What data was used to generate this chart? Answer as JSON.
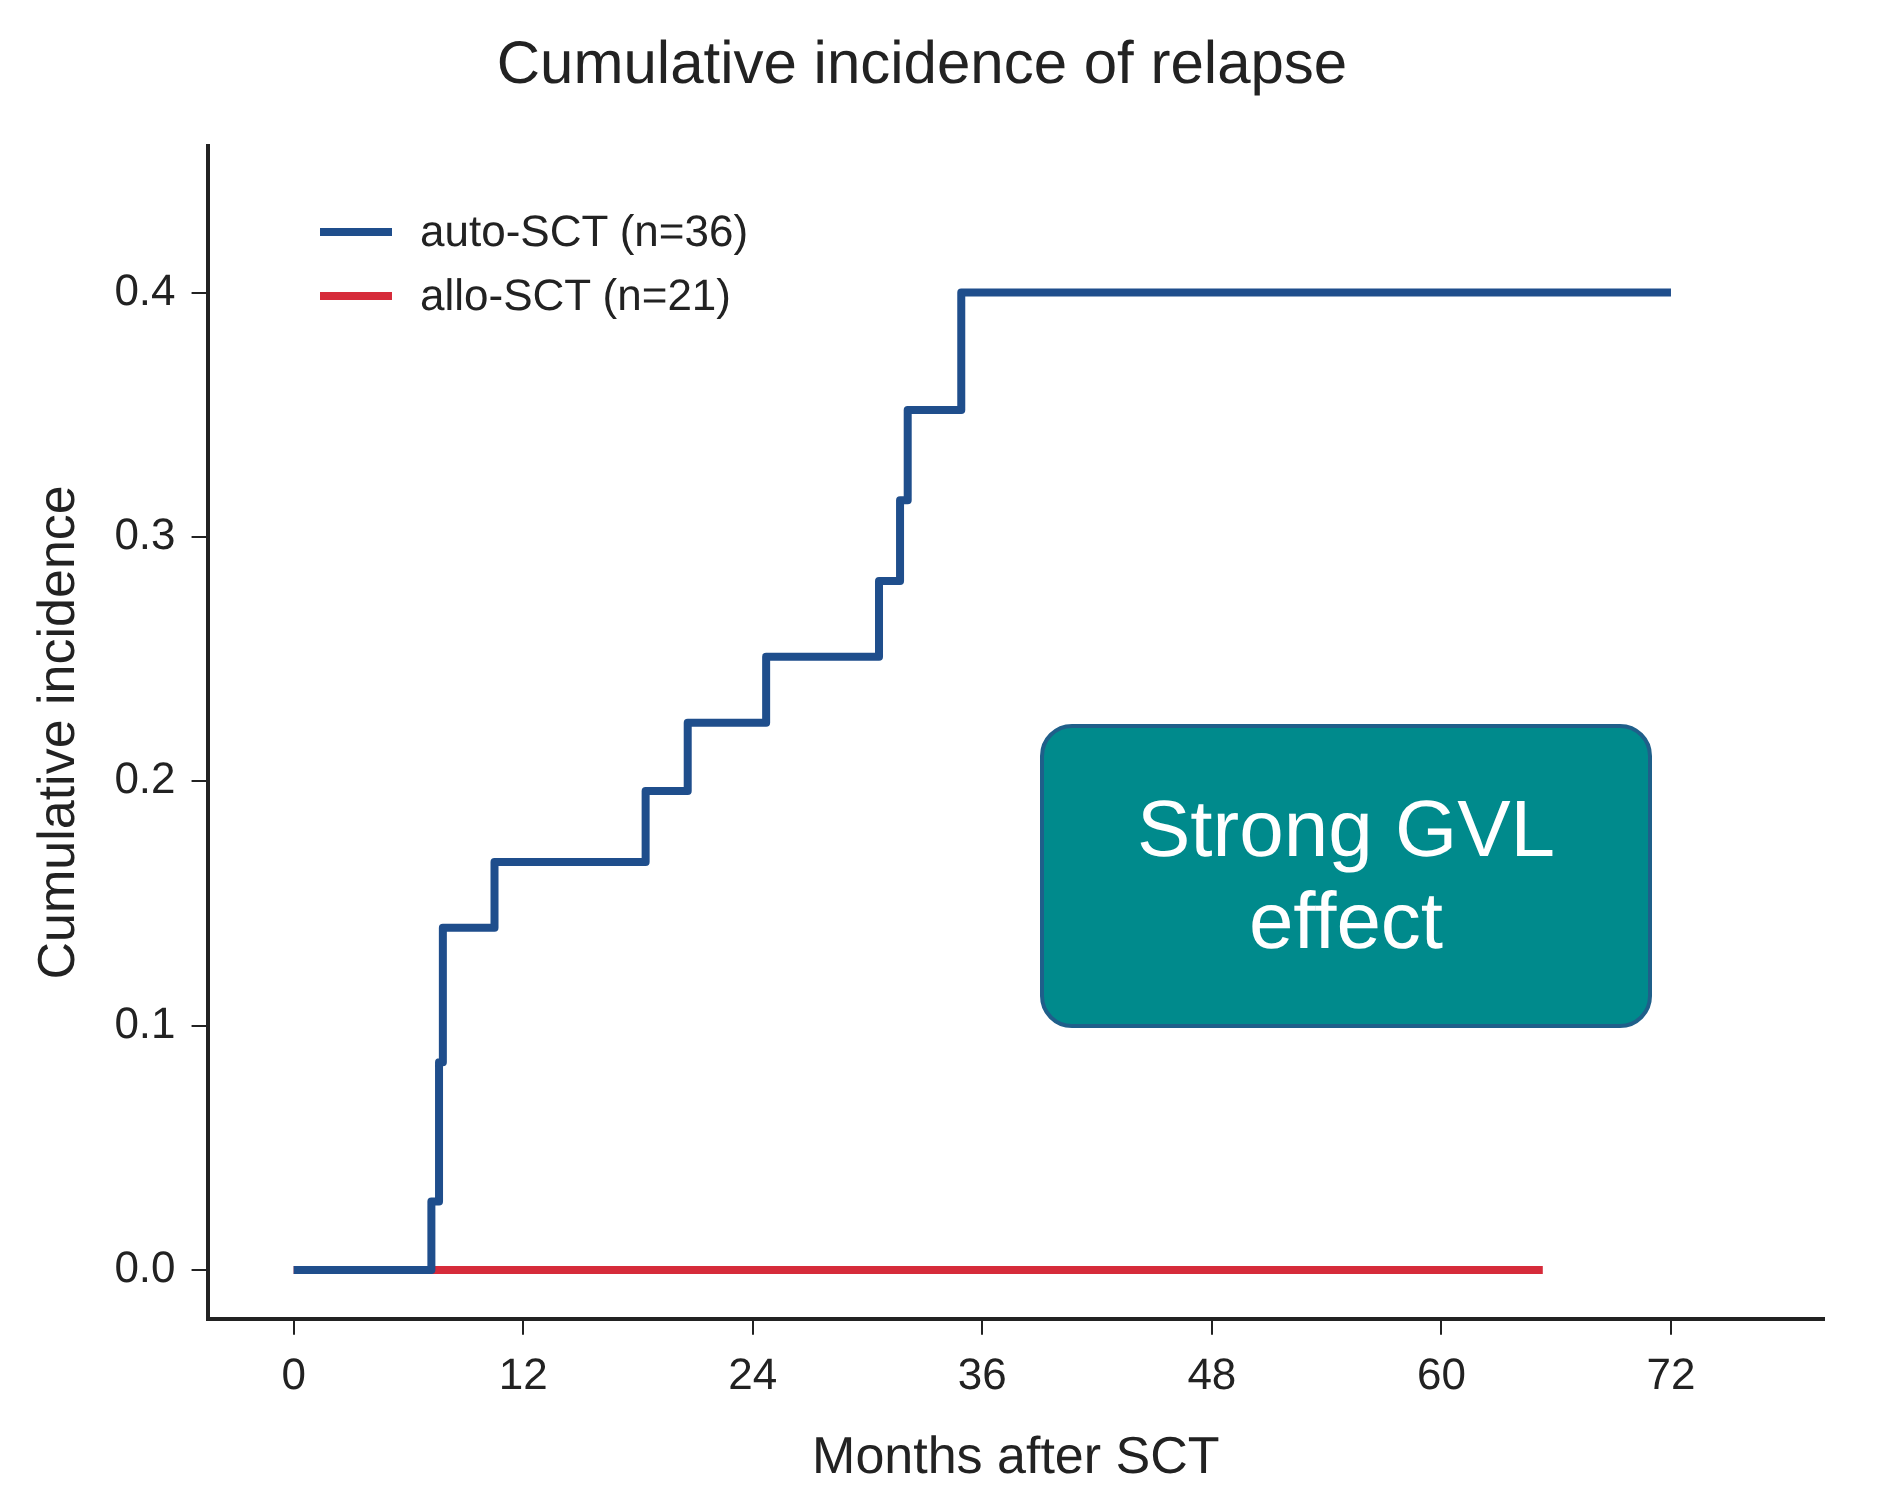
{
  "chart_data": {
    "type": "step",
    "title": "Cumulative incidence of relapse",
    "xlabel": "Months after SCT",
    "ylabel": "Cumulative incidence",
    "series": [
      {
        "name": "auto-SCT (n=36)",
        "color": "#1f4e8c",
        "x": [
          0,
          7.2,
          7.6,
          7.8,
          10.5,
          18.4,
          20.6,
          24.7,
          30.6,
          31.7,
          32.1,
          34.9,
          72
        ],
        "values": [
          0,
          0.028,
          0.085,
          0.14,
          0.167,
          0.196,
          0.224,
          0.251,
          0.282,
          0.315,
          0.352,
          0.4,
          0.4
        ]
      },
      {
        "name": "allo-SCT (n=21)",
        "color": "#d62b3a",
        "x": [
          0,
          65.3
        ],
        "values": [
          0,
          0
        ]
      }
    ],
    "xlim": [
      -4.5,
      80
    ],
    "xticks": [
      0,
      12,
      24,
      36,
      48,
      60,
      72
    ],
    "ylim": [
      -0.02,
      0.46
    ],
    "yticks": [
      {
        "value": 0,
        "label": "0.0"
      },
      0.1,
      0.2,
      0.3,
      0.4
    ],
    "grid": false,
    "legend": "top left",
    "marker": "none",
    "line_style": "solid",
    "annotations": [
      "Strong GVL effect"
    ]
  }
}
